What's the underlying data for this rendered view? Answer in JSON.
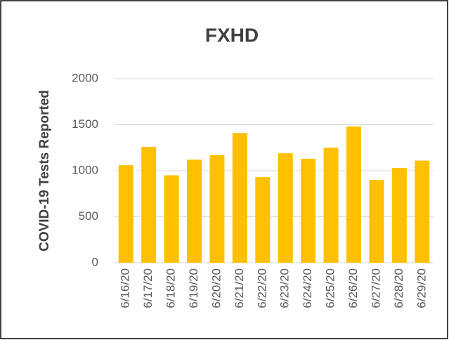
{
  "chart_data": {
    "type": "bar",
    "title": "FXHD",
    "y_label": "COVID-19 Tests Reported",
    "categories": [
      "6/16/20",
      "6/17/20",
      "6/18/20",
      "6/19/20",
      "6/20/20",
      "6/21/20",
      "6/22/20",
      "6/23/20",
      "6/24/20",
      "6/25/20",
      "6/26/20",
      "6/27/20",
      "6/28/20",
      "6/29/20"
    ],
    "values": [
      1060,
      1260,
      950,
      1120,
      1170,
      1410,
      930,
      1190,
      1130,
      1250,
      1480,
      900,
      1030,
      1110
    ],
    "color": "#ffc000",
    "ylim": [
      0,
      2000
    ],
    "yticks": [
      0,
      500,
      1000,
      1500,
      2000
    ],
    "grid": true
  }
}
